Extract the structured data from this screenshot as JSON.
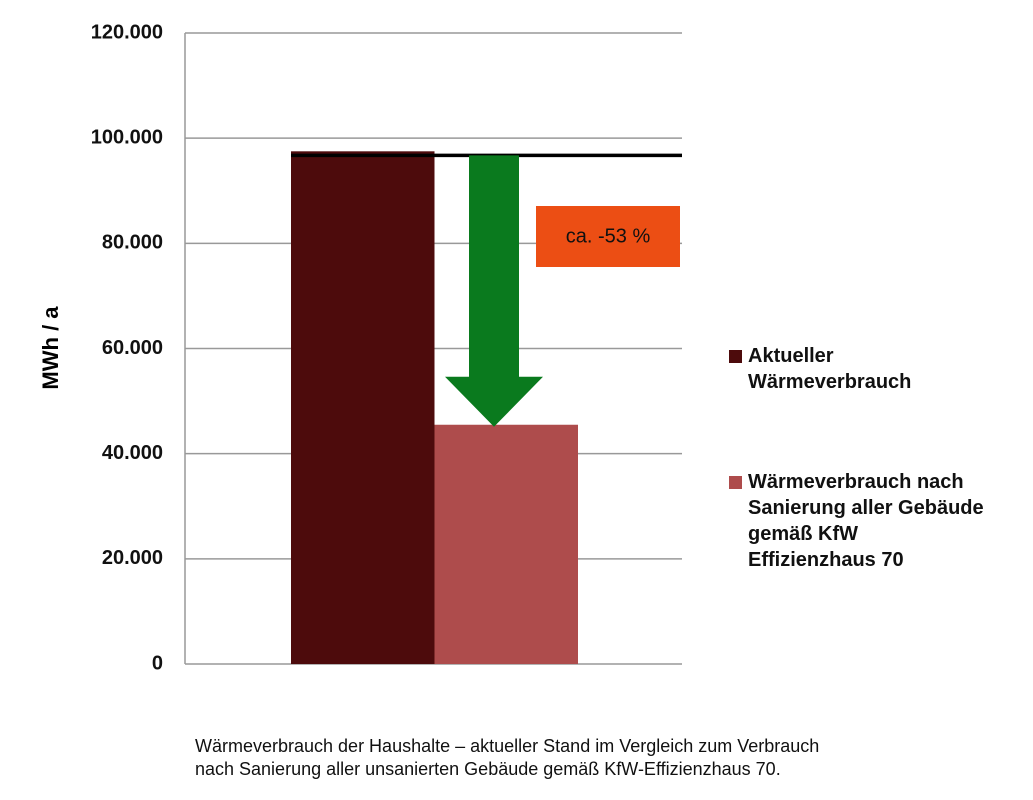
{
  "chart_data": {
    "type": "bar",
    "categories": [
      null
    ],
    "series": [
      {
        "name": "Aktueller Wärmeverbrauch",
        "color": "#4d0b0c",
        "values": [
          97500
        ]
      },
      {
        "name": "Wärmeverbrauch nach Sanierung aller Gebäude gemäß KfW Effizienzhaus 70",
        "color": "#ae4c4c",
        "values": [
          45500
        ]
      }
    ],
    "ylabel": "MWh / a",
    "ylim": [
      0,
      120000
    ],
    "yticks": [
      0,
      {
        "value": 20000,
        "label": "20.000"
      },
      {
        "value": 40000,
        "label": "40.000"
      },
      {
        "value": 60000,
        "label": "60.000"
      },
      {
        "value": 80000,
        "label": "80.000"
      },
      {
        "value": 100000,
        "label": "100.000"
      },
      {
        "value": 120000,
        "label": "120.000"
      }
    ],
    "grid": true,
    "legend": "right",
    "annotation": "ca. -53 %",
    "caption": [
      "Wärmeverbrauch der Haushalte – aktueller Stand im Vergleich zum Verbrauch",
      "nach Sanierung aller unsanierten Gebäude gemäß KfW-Effizienzhaus 70."
    ]
  }
}
